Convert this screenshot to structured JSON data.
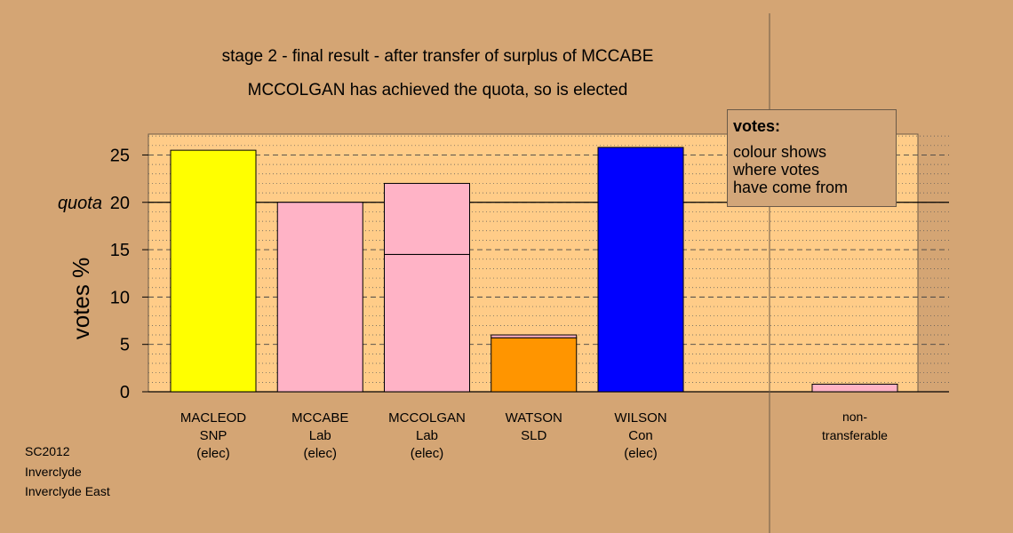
{
  "chart_data": {
    "type": "bar",
    "title": "stage 2 - final result - after transfer of surplus of MCCABE",
    "subtitle": "MCCOLGAN has achieved the quota, so is elected",
    "ylabel": "votes %",
    "ylim": [
      0,
      27.2
    ],
    "yticks": [
      0,
      5,
      10,
      15,
      20,
      25
    ],
    "quota": 20,
    "quota_label": "quota",
    "bars": [
      {
        "name": "MACLEOD",
        "party": "SNP",
        "status": "(elec)",
        "segments": [
          {
            "value": 25.5,
            "color": "#ffff00"
          }
        ]
      },
      {
        "name": "MCCABE",
        "party": "Lab",
        "status": "(elec)",
        "segments": [
          {
            "value": 20.0,
            "color": "#ffb3c6"
          }
        ]
      },
      {
        "name": "MCCOLGAN",
        "party": "Lab",
        "status": "(elec)",
        "segments": [
          {
            "value": 14.5,
            "color": "#ffb3c6"
          },
          {
            "value": 7.5,
            "color": "#ffb3c6"
          }
        ]
      },
      {
        "name": "WATSON",
        "party": "SLD",
        "status": "",
        "segments": [
          {
            "value": 5.7,
            "color": "#ff9500"
          },
          {
            "value": 0.3,
            "color": "#ffb3c6"
          }
        ]
      },
      {
        "name": "WILSON",
        "party": "Con",
        "status": "(elec)",
        "segments": [
          {
            "value": 25.8,
            "color": "#0000ff"
          }
        ]
      }
    ],
    "nontransferable": {
      "line1": "non-",
      "line2": "transferable",
      "value": 0.8,
      "color": "#ffb3c6"
    },
    "legend": {
      "title": "votes:",
      "lines": [
        "colour shows",
        "where votes",
        "have come from"
      ],
      "position": "top-right"
    },
    "grid": true
  },
  "source": {
    "line1": "SC2012",
    "line2": "Inverclyde",
    "line3": "Inverclyde East"
  }
}
